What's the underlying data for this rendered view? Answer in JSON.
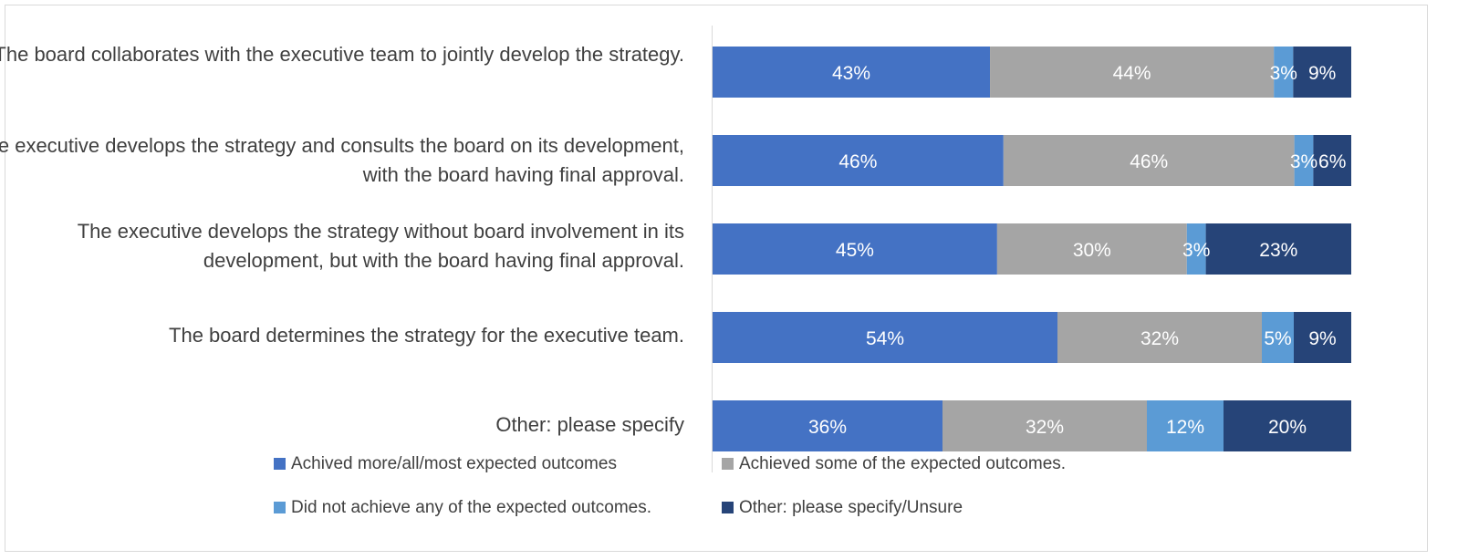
{
  "chart_data": {
    "type": "bar",
    "orientation": "horizontal",
    "stacked": true,
    "percent_stacked": true,
    "categories": [
      "The board collaborates with the executive team to jointly develop the strategy.",
      "The executive develops the strategy and consults the board on its development, with the board having final approval.",
      "The executive develops the strategy without board involvement in its development, but with the board having final approval.",
      "The board determines the strategy for the executive team.",
      "Other: please specify"
    ],
    "series": [
      {
        "name": "Achived more/all/most expected outcomes",
        "color": "#4472C4",
        "values": [
          43,
          46,
          45,
          54,
          36
        ],
        "labels": [
          "43%",
          "46%",
          "45%",
          "54%",
          "36%"
        ]
      },
      {
        "name": "Achieved some of the expected outcomes.",
        "color": "#A5A5A5",
        "values": [
          44,
          46,
          30,
          32,
          32
        ],
        "labels": [
          "44%",
          "46%",
          "30%",
          "32%",
          "32%"
        ]
      },
      {
        "name": "Did not achieve any of the expected outcomes.",
        "color": "#5B9BD5",
        "values": [
          3,
          3,
          3,
          5,
          12
        ],
        "labels": [
          "3%",
          "3%",
          "3%",
          "5%",
          "12%"
        ]
      },
      {
        "name": "Other: please specify/Unsure",
        "color": "#264478",
        "values": [
          9,
          6,
          23,
          9,
          20
        ],
        "labels": [
          "9%",
          "6%",
          "23%",
          "9%",
          "20%"
        ]
      }
    ],
    "xlabel": "",
    "ylabel": "",
    "xlim": [
      0,
      100
    ],
    "grid": false,
    "legend_position": "bottom"
  }
}
